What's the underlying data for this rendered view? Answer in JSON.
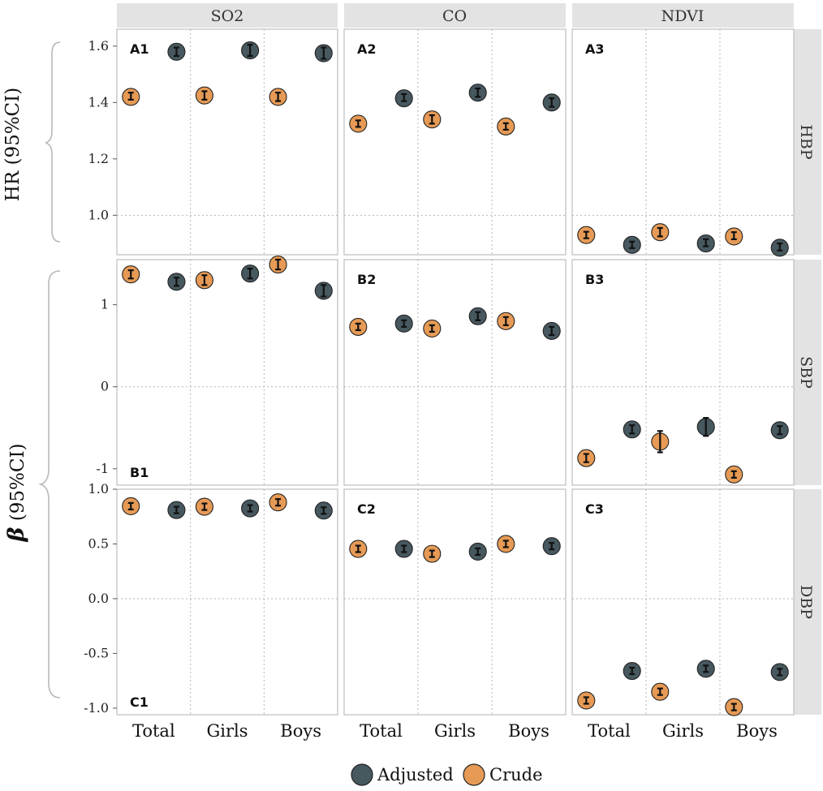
{
  "chart_data": {
    "type": "scatter",
    "title": "",
    "columns": [
      "SO2",
      "CO",
      "NDVI"
    ],
    "rows": [
      "HBP",
      "SBP",
      "DBP"
    ],
    "categories": [
      "Total",
      "Girls",
      "Boys"
    ],
    "y_labels": {
      "hr": "HR (95%CI)",
      "beta_symbol": "β",
      "beta_rest": " (95%CI)"
    },
    "legend": {
      "position": "bottom",
      "entries": [
        "Adjusted",
        "Crude"
      ]
    },
    "colors": {
      "Adjusted": "#47585f",
      "Crude": "#e69a55",
      "strip": "#e3e3e3",
      "grid": "#b5b5b5",
      "frame": "#bdbdbd",
      "bar": "#111111"
    },
    "grid": true,
    "rows_spec": [
      {
        "name": "HBP",
        "ylim": [
          0.86,
          1.66
        ],
        "ticks": [
          1.0,
          1.2,
          1.4,
          1.6
        ],
        "tick_labels": [
          "1.0",
          "1.2",
          "1.4",
          "1.6"
        ],
        "dashed_ref": 1.0
      },
      {
        "name": "SBP",
        "ylim": [
          -1.2,
          1.55
        ],
        "ticks": [
          -1,
          0,
          1
        ],
        "tick_labels": [
          "-1",
          "0",
          "1"
        ],
        "dashed_ref": 0
      },
      {
        "name": "DBP",
        "ylim": [
          -1.06,
          1.0
        ],
        "ticks": [
          -1.0,
          -0.5,
          0.0,
          0.5,
          1.0
        ],
        "tick_labels": [
          "-1.0",
          "-0.5",
          "0.0",
          "0.5",
          "1.0"
        ],
        "dashed_ref": 0.0
      }
    ],
    "panels": [
      {
        "id": "A1",
        "row": 0,
        "col": 0,
        "tag_pos": "top-left",
        "points": [
          {
            "group": "Total",
            "series": "Crude",
            "est": 1.42,
            "lo": 1.41,
            "hi": 1.435
          },
          {
            "group": "Total",
            "series": "Adjusted",
            "est": 1.58,
            "lo": 1.565,
            "hi": 1.595
          },
          {
            "group": "Girls",
            "series": "Crude",
            "est": 1.425,
            "lo": 1.41,
            "hi": 1.44
          },
          {
            "group": "Girls",
            "series": "Adjusted",
            "est": 1.585,
            "lo": 1.565,
            "hi": 1.605
          },
          {
            "group": "Boys",
            "series": "Crude",
            "est": 1.42,
            "lo": 1.405,
            "hi": 1.435
          },
          {
            "group": "Boys",
            "series": "Adjusted",
            "est": 1.575,
            "lo": 1.555,
            "hi": 1.595
          }
        ]
      },
      {
        "id": "A2",
        "row": 0,
        "col": 1,
        "tag_pos": "top-left",
        "points": [
          {
            "group": "Total",
            "series": "Crude",
            "est": 1.325,
            "lo": 1.315,
            "hi": 1.335
          },
          {
            "group": "Total",
            "series": "Adjusted",
            "est": 1.415,
            "lo": 1.405,
            "hi": 1.43
          },
          {
            "group": "Girls",
            "series": "Crude",
            "est": 1.34,
            "lo": 1.325,
            "hi": 1.355
          },
          {
            "group": "Girls",
            "series": "Adjusted",
            "est": 1.435,
            "lo": 1.42,
            "hi": 1.45
          },
          {
            "group": "Boys",
            "series": "Crude",
            "est": 1.315,
            "lo": 1.305,
            "hi": 1.325
          },
          {
            "group": "Boys",
            "series": "Adjusted",
            "est": 1.4,
            "lo": 1.385,
            "hi": 1.415
          }
        ]
      },
      {
        "id": "A3",
        "row": 0,
        "col": 2,
        "tag_pos": "top-left",
        "points": [
          {
            "group": "Total",
            "series": "Crude",
            "est": 0.93,
            "lo": 0.92,
            "hi": 0.94
          },
          {
            "group": "Total",
            "series": "Adjusted",
            "est": 0.895,
            "lo": 0.885,
            "hi": 0.905
          },
          {
            "group": "Girls",
            "series": "Crude",
            "est": 0.94,
            "lo": 0.925,
            "hi": 0.955
          },
          {
            "group": "Girls",
            "series": "Adjusted",
            "est": 0.9,
            "lo": 0.89,
            "hi": 0.915
          },
          {
            "group": "Boys",
            "series": "Crude",
            "est": 0.925,
            "lo": 0.915,
            "hi": 0.94
          },
          {
            "group": "Boys",
            "series": "Adjusted",
            "est": 0.885,
            "lo": 0.875,
            "hi": 0.9
          }
        ]
      },
      {
        "id": "B1",
        "row": 1,
        "col": 0,
        "tag_pos": "bottom-left",
        "points": [
          {
            "group": "Total",
            "series": "Crude",
            "est": 1.37,
            "lo": 1.32,
            "hi": 1.42
          },
          {
            "group": "Total",
            "series": "Adjusted",
            "est": 1.28,
            "lo": 1.23,
            "hi": 1.33
          },
          {
            "group": "Girls",
            "series": "Crude",
            "est": 1.3,
            "lo": 1.24,
            "hi": 1.36
          },
          {
            "group": "Girls",
            "series": "Adjusted",
            "est": 1.38,
            "lo": 1.32,
            "hi": 1.44
          },
          {
            "group": "Boys",
            "series": "Crude",
            "est": 1.49,
            "lo": 1.43,
            "hi": 1.55
          },
          {
            "group": "Boys",
            "series": "Adjusted",
            "est": 1.17,
            "lo": 1.1,
            "hi": 1.24
          }
        ]
      },
      {
        "id": "B2",
        "row": 1,
        "col": 1,
        "tag_pos": "top-left",
        "points": [
          {
            "group": "Total",
            "series": "Crude",
            "est": 0.73,
            "lo": 0.69,
            "hi": 0.77
          },
          {
            "group": "Total",
            "series": "Adjusted",
            "est": 0.77,
            "lo": 0.73,
            "hi": 0.81
          },
          {
            "group": "Girls",
            "series": "Crude",
            "est": 0.71,
            "lo": 0.67,
            "hi": 0.75
          },
          {
            "group": "Girls",
            "series": "Adjusted",
            "est": 0.86,
            "lo": 0.81,
            "hi": 0.91
          },
          {
            "group": "Boys",
            "series": "Crude",
            "est": 0.8,
            "lo": 0.75,
            "hi": 0.85
          },
          {
            "group": "Boys",
            "series": "Adjusted",
            "est": 0.68,
            "lo": 0.63,
            "hi": 0.73
          }
        ]
      },
      {
        "id": "B3",
        "row": 1,
        "col": 2,
        "tag_pos": "top-left",
        "points": [
          {
            "group": "Total",
            "series": "Crude",
            "est": -0.87,
            "lo": -0.92,
            "hi": -0.82
          },
          {
            "group": "Total",
            "series": "Adjusted",
            "est": -0.52,
            "lo": -0.57,
            "hi": -0.47
          },
          {
            "group": "Girls",
            "series": "Crude",
            "est": -0.67,
            "lo": -0.8,
            "hi": -0.54
          },
          {
            "group": "Girls",
            "series": "Adjusted",
            "est": -0.49,
            "lo": -0.6,
            "hi": -0.38
          },
          {
            "group": "Boys",
            "series": "Crude",
            "est": -1.07,
            "lo": -1.11,
            "hi": -1.03
          },
          {
            "group": "Boys",
            "series": "Adjusted",
            "est": -0.53,
            "lo": -0.58,
            "hi": -0.48
          }
        ]
      },
      {
        "id": "C1",
        "row": 2,
        "col": 0,
        "tag_pos": "bottom-left",
        "points": [
          {
            "group": "Total",
            "series": "Crude",
            "est": 0.845,
            "lo": 0.82,
            "hi": 0.87
          },
          {
            "group": "Total",
            "series": "Adjusted",
            "est": 0.81,
            "lo": 0.785,
            "hi": 0.835
          },
          {
            "group": "Girls",
            "series": "Crude",
            "est": 0.84,
            "lo": 0.815,
            "hi": 0.865
          },
          {
            "group": "Girls",
            "series": "Adjusted",
            "est": 0.825,
            "lo": 0.8,
            "hi": 0.85
          },
          {
            "group": "Boys",
            "series": "Crude",
            "est": 0.88,
            "lo": 0.85,
            "hi": 0.91
          },
          {
            "group": "Boys",
            "series": "Adjusted",
            "est": 0.805,
            "lo": 0.775,
            "hi": 0.835
          }
        ]
      },
      {
        "id": "C2",
        "row": 2,
        "col": 1,
        "tag_pos": "top-left",
        "points": [
          {
            "group": "Total",
            "series": "Crude",
            "est": 0.455,
            "lo": 0.435,
            "hi": 0.475
          },
          {
            "group": "Total",
            "series": "Adjusted",
            "est": 0.455,
            "lo": 0.435,
            "hi": 0.475
          },
          {
            "group": "Girls",
            "series": "Crude",
            "est": 0.41,
            "lo": 0.39,
            "hi": 0.43
          },
          {
            "group": "Girls",
            "series": "Adjusted",
            "est": 0.43,
            "lo": 0.41,
            "hi": 0.45
          },
          {
            "group": "Boys",
            "series": "Crude",
            "est": 0.5,
            "lo": 0.48,
            "hi": 0.52
          },
          {
            "group": "Boys",
            "series": "Adjusted",
            "est": 0.48,
            "lo": 0.46,
            "hi": 0.5
          }
        ]
      },
      {
        "id": "C3",
        "row": 2,
        "col": 2,
        "tag_pos": "top-left",
        "points": [
          {
            "group": "Total",
            "series": "Crude",
            "est": -0.93,
            "lo": -0.95,
            "hi": -0.91
          },
          {
            "group": "Total",
            "series": "Adjusted",
            "est": -0.66,
            "lo": -0.68,
            "hi": -0.64
          },
          {
            "group": "Girls",
            "series": "Crude",
            "est": -0.85,
            "lo": -0.87,
            "hi": -0.83
          },
          {
            "group": "Girls",
            "series": "Adjusted",
            "est": -0.64,
            "lo": -0.665,
            "hi": -0.615
          },
          {
            "group": "Boys",
            "series": "Crude",
            "est": -0.99,
            "lo": -1.01,
            "hi": -0.97
          },
          {
            "group": "Boys",
            "series": "Adjusted",
            "est": -0.67,
            "lo": -0.69,
            "hi": -0.65
          }
        ]
      }
    ]
  }
}
